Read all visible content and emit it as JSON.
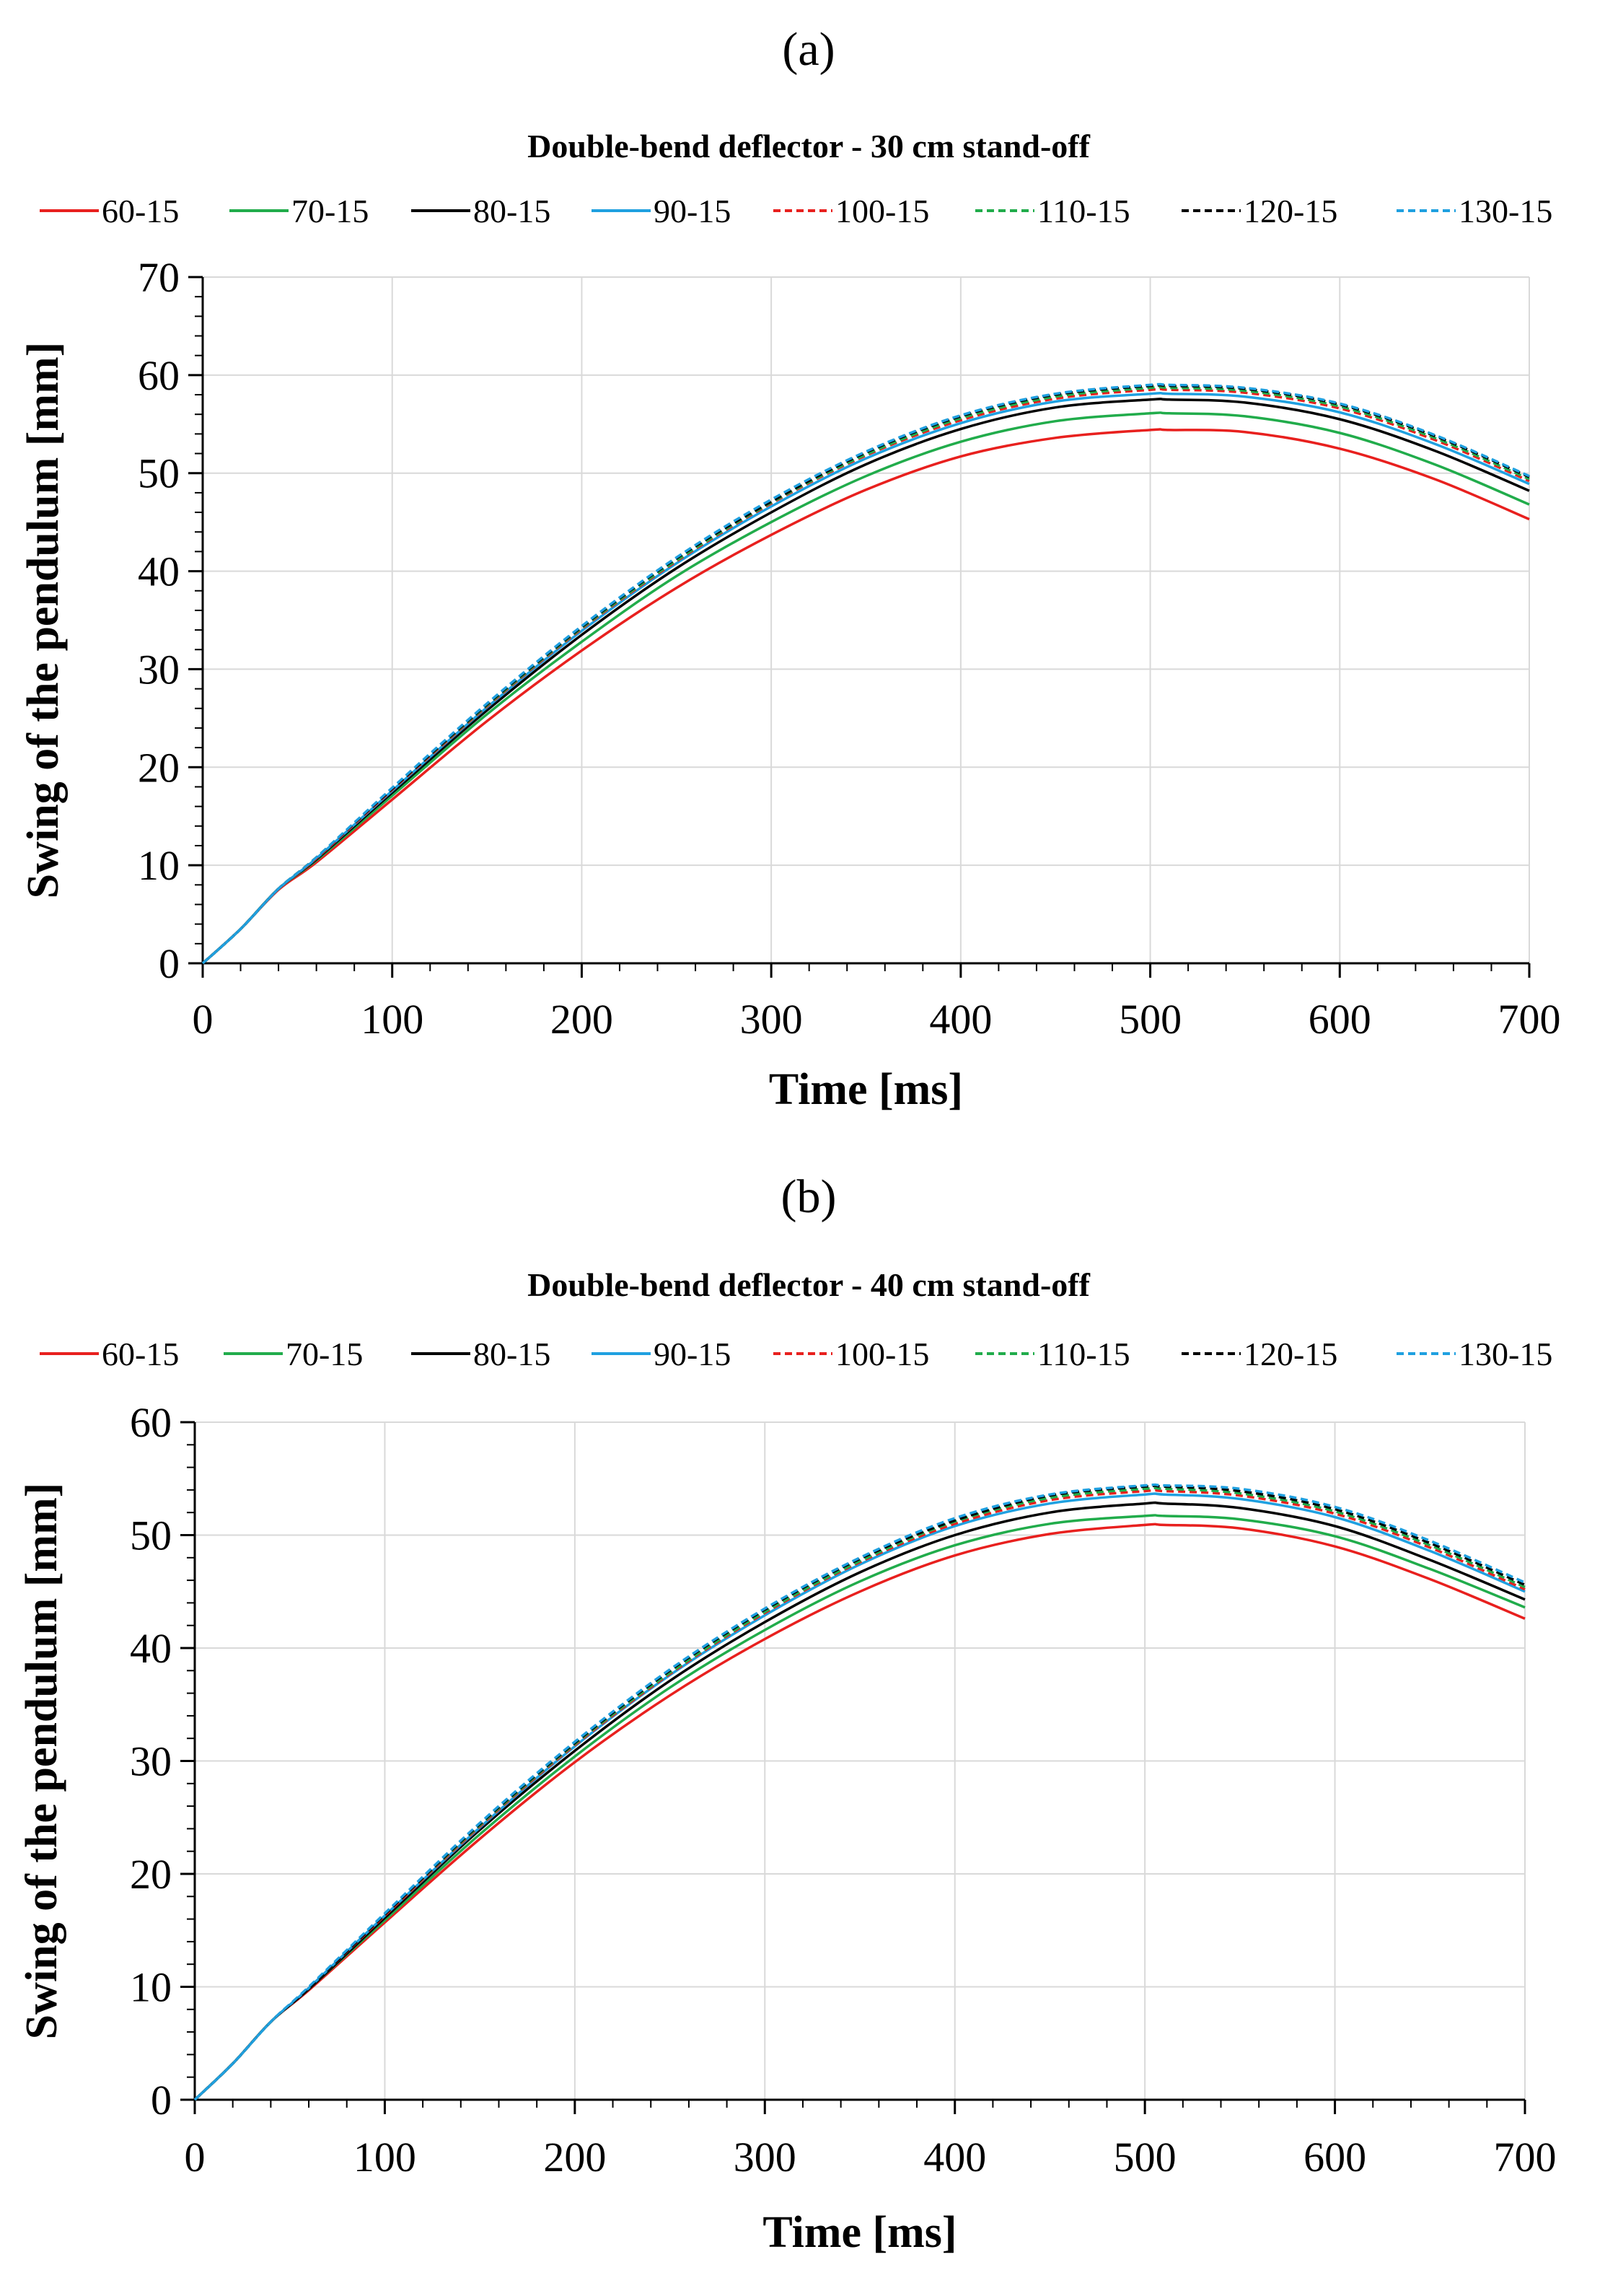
{
  "chart_data": [
    {
      "type": "line",
      "panel_label": "(a)",
      "title": "Double-bend deflector - 30 cm stand-off",
      "xlabel": "Time [ms]",
      "ylabel": "Swing of the pendulum [mm]",
      "xlim": [
        0,
        700
      ],
      "ylim": [
        0,
        70
      ],
      "xticks": [
        0,
        100,
        200,
        300,
        400,
        500,
        600,
        700
      ],
      "yticks": [
        0,
        10,
        20,
        30,
        40,
        50,
        60,
        70
      ],
      "grid": true,
      "legend_position": "top",
      "x": [
        0,
        20,
        40,
        60,
        100,
        150,
        200,
        250,
        300,
        350,
        400,
        450,
        500,
        510,
        550,
        600,
        650,
        700
      ],
      "series": [
        {
          "name": "60-15",
          "color": "#e8201e",
          "dash": "solid",
          "values": [
            0,
            3.5,
            7.5,
            10.3,
            16.7,
            24.7,
            31.9,
            38.3,
            43.7,
            48.3,
            51.7,
            53.6,
            54.4,
            54.4,
            54.2,
            52.5,
            49.4,
            45.3
          ]
        },
        {
          "name": "70-15",
          "color": "#21ac4b",
          "dash": "solid",
          "values": [
            0,
            3.5,
            7.6,
            10.5,
            17.1,
            25.4,
            32.8,
            39.5,
            45.0,
            49.7,
            53.2,
            55.3,
            56.1,
            56.1,
            55.8,
            54.1,
            50.9,
            46.8
          ]
        },
        {
          "name": "80-15",
          "color": "#000000",
          "dash": "solid",
          "values": [
            0,
            3.5,
            7.6,
            10.6,
            17.4,
            25.8,
            33.5,
            40.3,
            46.0,
            50.9,
            54.5,
            56.7,
            57.5,
            57.5,
            57.2,
            55.5,
            52.3,
            48.2
          ]
        },
        {
          "name": "90-15",
          "color": "#1fa0e0",
          "dash": "solid",
          "values": [
            0,
            3.5,
            7.6,
            10.7,
            17.6,
            26.1,
            33.9,
            40.8,
            46.6,
            51.5,
            55.1,
            57.3,
            58.1,
            58.1,
            57.8,
            56.2,
            53.0,
            48.9
          ]
        },
        {
          "name": "100-15",
          "color": "#e8201e",
          "dash": "dashed",
          "values": [
            0,
            3.5,
            7.6,
            10.7,
            17.7,
            26.2,
            34.1,
            41.0,
            46.9,
            51.8,
            55.4,
            57.6,
            58.5,
            58.5,
            58.2,
            56.6,
            53.4,
            49.2
          ]
        },
        {
          "name": "110-15",
          "color": "#21ac4b",
          "dash": "dashed",
          "values": [
            0,
            3.5,
            7.6,
            10.8,
            17.8,
            26.3,
            34.2,
            41.1,
            47.0,
            51.9,
            55.6,
            57.8,
            58.7,
            58.7,
            58.4,
            56.8,
            53.6,
            49.4
          ]
        },
        {
          "name": "120-15",
          "color": "#000000",
          "dash": "dashed",
          "values": [
            0,
            3.5,
            7.6,
            10.8,
            17.8,
            26.4,
            34.3,
            41.3,
            47.1,
            52.1,
            55.8,
            58.0,
            58.9,
            58.9,
            58.6,
            57.0,
            53.8,
            49.6
          ]
        },
        {
          "name": "130-15",
          "color": "#1fa0e0",
          "dash": "dashed",
          "values": [
            0,
            3.5,
            7.6,
            10.8,
            17.9,
            26.5,
            34.4,
            41.4,
            47.3,
            52.2,
            55.9,
            58.1,
            59.0,
            59.0,
            58.7,
            57.1,
            53.9,
            49.7
          ]
        }
      ]
    },
    {
      "type": "line",
      "panel_label": "(b)",
      "title": "Double-bend deflector - 40 cm stand-off",
      "xlabel": "Time [ms]",
      "ylabel": "Swing of the pendulum [mm]",
      "xlim": [
        0,
        700
      ],
      "ylim": [
        0,
        60
      ],
      "xticks": [
        0,
        100,
        200,
        300,
        400,
        500,
        600,
        700
      ],
      "yticks": [
        0,
        10,
        20,
        30,
        40,
        50,
        60
      ],
      "grid": true,
      "legend_position": "top",
      "x": [
        0,
        20,
        40,
        60,
        100,
        150,
        200,
        250,
        300,
        350,
        400,
        450,
        500,
        510,
        550,
        600,
        650,
        700
      ],
      "series": [
        {
          "name": "60-15",
          "color": "#e8201e",
          "dash": "solid",
          "values": [
            0,
            3.2,
            6.9,
            9.7,
            15.7,
            23.1,
            29.9,
            35.8,
            40.8,
            45.0,
            48.2,
            50.1,
            50.9,
            50.9,
            50.6,
            49.0,
            46.1,
            42.6
          ]
        },
        {
          "name": "70-15",
          "color": "#21ac4b",
          "dash": "solid",
          "values": [
            0,
            3.2,
            6.9,
            9.8,
            15.9,
            23.5,
            30.4,
            36.5,
            41.6,
            45.9,
            49.1,
            51.0,
            51.7,
            51.7,
            51.4,
            49.9,
            47.0,
            43.6
          ]
        },
        {
          "name": "80-15",
          "color": "#000000",
          "dash": "solid",
          "values": [
            0,
            3.2,
            6.9,
            9.8,
            16.1,
            23.9,
            30.9,
            37.1,
            42.3,
            46.7,
            50.0,
            52.0,
            52.8,
            52.8,
            52.4,
            50.8,
            47.8,
            44.3
          ]
        },
        {
          "name": "90-15",
          "color": "#1fa0e0",
          "dash": "solid",
          "values": [
            0,
            3.2,
            6.9,
            9.9,
            16.3,
            24.1,
            31.3,
            37.6,
            42.9,
            47.4,
            50.8,
            52.8,
            53.6,
            53.6,
            53.2,
            51.6,
            48.6,
            45.0
          ]
        },
        {
          "name": "100-15",
          "color": "#e8201e",
          "dash": "dashed",
          "values": [
            0,
            3.2,
            6.9,
            9.9,
            16.3,
            24.2,
            31.4,
            37.7,
            43.1,
            47.6,
            51.0,
            53.1,
            53.9,
            53.9,
            53.5,
            51.9,
            48.9,
            45.2
          ]
        },
        {
          "name": "110-15",
          "color": "#21ac4b",
          "dash": "dashed",
          "values": [
            0,
            3.2,
            6.9,
            9.9,
            16.4,
            24.3,
            31.5,
            37.8,
            43.2,
            47.7,
            51.2,
            53.3,
            54.1,
            54.1,
            53.7,
            52.1,
            49.1,
            45.4
          ]
        },
        {
          "name": "120-15",
          "color": "#000000",
          "dash": "dashed",
          "values": [
            0,
            3.2,
            6.9,
            9.9,
            16.4,
            24.4,
            31.6,
            38.0,
            43.4,
            47.9,
            51.3,
            53.5,
            54.3,
            54.3,
            53.9,
            52.3,
            49.3,
            45.6
          ]
        },
        {
          "name": "130-15",
          "color": "#1fa0e0",
          "dash": "dashed",
          "values": [
            0,
            3.2,
            6.9,
            10.0,
            16.5,
            24.5,
            31.7,
            38.1,
            43.5,
            48.0,
            51.5,
            53.6,
            54.4,
            54.4,
            54.1,
            52.5,
            49.5,
            45.8
          ]
        }
      ]
    }
  ]
}
